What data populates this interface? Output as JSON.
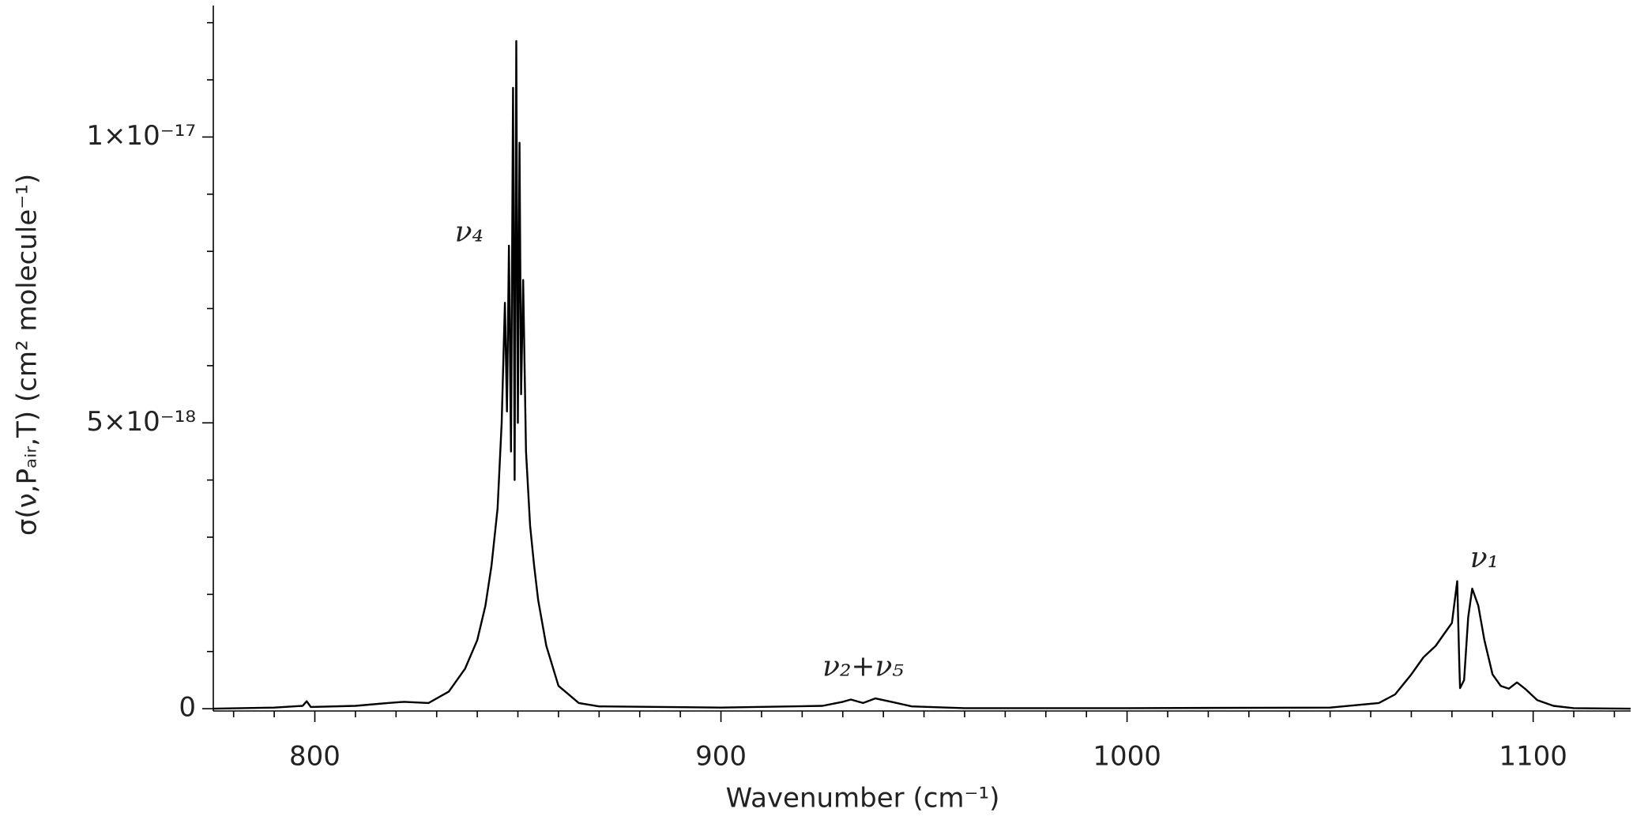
{
  "chart_data": {
    "type": "line",
    "x_label": "Wavenumber (cm⁻¹)",
    "y_label": "σ(ν,Pₐᵢᵣ,T) (cm² molecule⁻¹)",
    "annotations": [
      {
        "text": "ν₄",
        "x": 838,
        "y": 8.3e-18
      },
      {
        "text": "ν₂+ν₅",
        "x": 935,
        "y": 7e-19
      },
      {
        "text": "ν₁",
        "x": 1088,
        "y": 2.6e-18
      }
    ],
    "x": [
      775,
      790,
      797,
      798,
      799,
      810,
      818,
      822,
      828,
      833,
      837,
      840,
      842,
      843.5,
      845,
      846,
      846.8,
      847.3,
      847.8,
      848.3,
      848.8,
      849.2,
      849.6,
      850,
      850.4,
      850.8,
      851.3,
      852,
      853,
      854,
      855,
      857,
      860,
      865,
      870,
      900,
      925,
      930,
      932,
      935,
      938,
      942,
      947,
      960,
      1000,
      1050,
      1062,
      1066,
      1070,
      1073,
      1076,
      1078,
      1080,
      1081.3,
      1081.8,
      1082,
      1083,
      1084,
      1085,
      1086.5,
      1088,
      1090,
      1092,
      1094,
      1096,
      1098,
      1101,
      1105,
      1110,
      1124
    ],
    "values": [
      0,
      2e-20,
      5e-20,
      1.3e-19,
      3e-20,
      5e-20,
      1e-19,
      1.2e-19,
      1e-19,
      3e-19,
      7e-19,
      1.2e-18,
      1.8e-18,
      2.5e-18,
      3.5e-18,
      5e-18,
      7.1e-18,
      5.2e-18,
      8.1e-18,
      4.5e-18,
      1.086e-17,
      4e-18,
      1.168e-17,
      5e-18,
      9.9e-18,
      5.5e-18,
      7.5e-18,
      4.5e-18,
      3.2e-18,
      2.5e-18,
      1.9e-18,
      1.1e-18,
      4e-19,
      1e-19,
      4e-20,
      2e-20,
      5e-20,
      1.2e-19,
      1.6e-19,
      1e-19,
      1.8e-19,
      1.2e-19,
      4e-20,
      1e-20,
      1e-20,
      2e-20,
      1e-19,
      2.5e-19,
      6e-19,
      9e-19,
      1.1e-18,
      1.3e-18,
      1.5e-18,
      2.23e-18,
      8e-19,
      3.6e-19,
      5e-19,
      1.6e-18,
      2.1e-18,
      1.8e-18,
      1.2e-18,
      6e-19,
      4e-19,
      3.5e-19,
      4.6e-19,
      3.5e-19,
      1.5e-19,
      5e-20,
      1e-20,
      0
    ],
    "color": "#000000",
    "xlim": [
      775,
      1124
    ],
    "ylim": [
      -4e-20,
      1.23e-17
    ],
    "xticks": [
      800,
      900,
      1000,
      1100
    ],
    "xticks_minor": [
      780,
      790,
      810,
      820,
      830,
      840,
      850,
      860,
      870,
      880,
      890,
      910,
      920,
      930,
      940,
      950,
      960,
      970,
      980,
      990,
      1010,
      1020,
      1030,
      1040,
      1050,
      1060,
      1070,
      1080,
      1090,
      1110,
      1120
    ],
    "yticks": [
      0,
      {
        "value": 5e-18,
        "label": "5×10⁻¹⁸"
      },
      {
        "value": 1e-17,
        "label": "1×10⁻¹⁷"
      }
    ],
    "yticks_minor": [
      1e-18,
      2e-18,
      3e-18,
      4e-18,
      6e-18,
      7e-18,
      8e-18,
      9e-18,
      1.1e-17,
      1.2e-17
    ]
  }
}
